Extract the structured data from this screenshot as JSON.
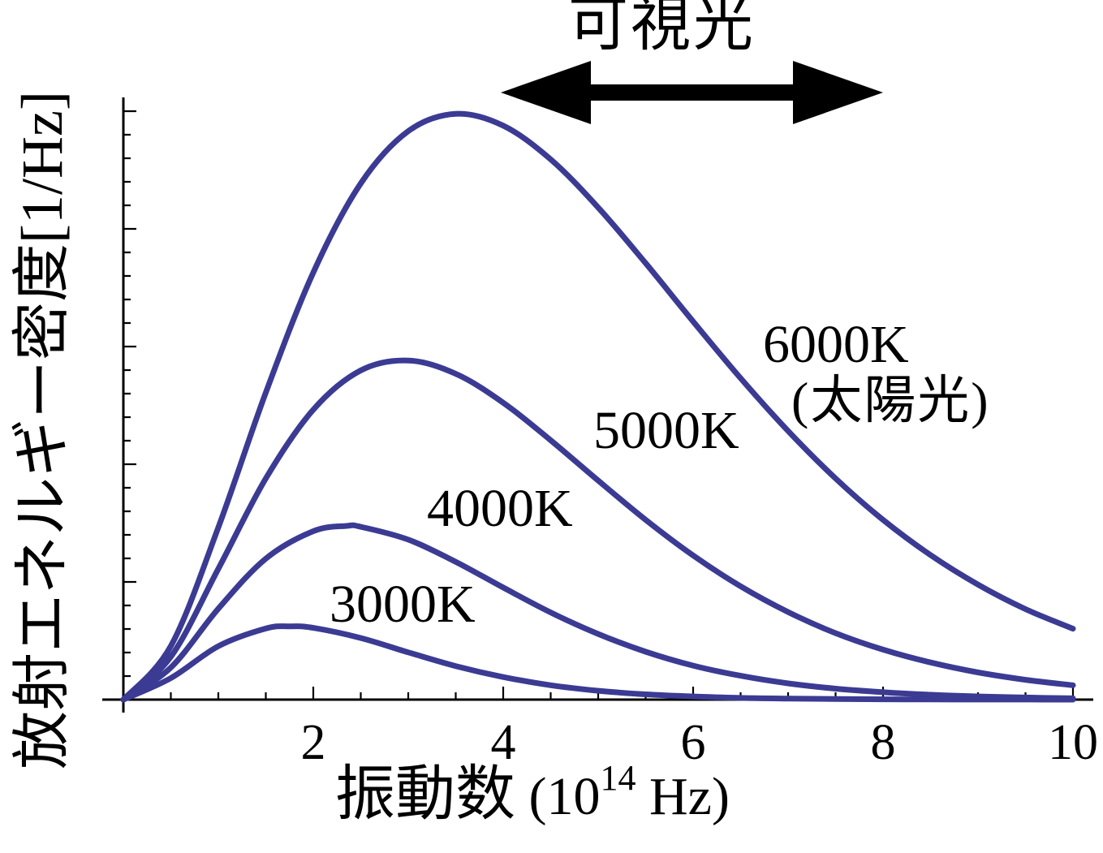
{
  "page": {
    "background_color": "#ffffff"
  },
  "chart_data": {
    "type": "line",
    "title": "",
    "annotation_visible_light": "可視光",
    "xlabel": {
      "main": "振動数",
      "unit_prefix": " (10",
      "exponent": "14",
      "unit_suffix": " Hz)"
    },
    "ylabel": "放射エネルギー密度[1/Hz]",
    "x_unit": "10^14 Hz",
    "x_ticks": [
      2,
      4,
      6,
      8,
      10
    ],
    "xlim": [
      0,
      10
    ],
    "ylim_relative": [
      0,
      2.9
    ],
    "grid": false,
    "legend_position": "inline-labels-on-curves",
    "line_color": "#3b3b94",
    "axis_color": "#000000",
    "arrow_color": "#000000",
    "series": [
      {
        "name": "6000K",
        "sublabel": "(太陽光)",
        "temperature_K": 6000,
        "points": [
          [
            0,
            0
          ],
          [
            0.5,
            0.254
          ],
          [
            1,
            0.816
          ],
          [
            1.5,
            1.455
          ],
          [
            2,
            2.024
          ],
          [
            2.5,
            2.446
          ],
          [
            3,
            2.694
          ],
          [
            3.5,
            2.776
          ],
          [
            4,
            2.72
          ],
          [
            4.5,
            2.56
          ],
          [
            5,
            2.332
          ],
          [
            5.5,
            2.068
          ],
          [
            6,
            1.792
          ],
          [
            6.5,
            1.523
          ],
          [
            7,
            1.273
          ],
          [
            7.5,
            1.048
          ],
          [
            8,
            0.852
          ],
          [
            8.5,
            0.685
          ],
          [
            9,
            0.545
          ],
          [
            9.5,
            0.429
          ],
          [
            10,
            0.336
          ]
        ]
      },
      {
        "name": "5000K",
        "sublabel": "",
        "temperature_K": 5000,
        "points": [
          [
            0,
            0
          ],
          [
            0.5,
            0.203
          ],
          [
            1,
            0.62
          ],
          [
            1.5,
            1.048
          ],
          [
            2,
            1.374
          ],
          [
            2.5,
            1.56
          ],
          [
            3,
            1.607
          ],
          [
            3.5,
            1.544
          ],
          [
            4,
            1.407
          ],
          [
            4.5,
            1.229
          ],
          [
            5,
            1.038
          ],
          [
            5.5,
            0.852
          ],
          [
            6,
            0.683
          ],
          [
            6.5,
            0.537
          ],
          [
            7,
            0.415
          ],
          [
            7.5,
            0.315
          ],
          [
            8,
            0.237
          ],
          [
            8.5,
            0.176
          ],
          [
            9,
            0.129
          ],
          [
            9.5,
            0.094
          ],
          [
            10,
            0.068
          ]
        ]
      },
      {
        "name": "4000K",
        "sublabel": "",
        "temperature_K": 4000,
        "points": [
          [
            0,
            0
          ],
          [
            0.5,
            0.152
          ],
          [
            1,
            0.431
          ],
          [
            1.5,
            0.668
          ],
          [
            2,
            0.798
          ],
          [
            2.35,
            0.823
          ],
          [
            2.5,
            0.819
          ],
          [
            3,
            0.758
          ],
          [
            3.5,
            0.653
          ],
          [
            4,
            0.531
          ],
          [
            4.5,
            0.413
          ],
          [
            5,
            0.311
          ],
          [
            5.5,
            0.227
          ],
          [
            6,
            0.161
          ],
          [
            6.5,
            0.113
          ],
          [
            7,
            0.077
          ],
          [
            7.5,
            0.052
          ],
          [
            8,
            0.035
          ],
          [
            8.5,
            0.023
          ],
          [
            9,
            0.015
          ],
          [
            9.5,
            0.01
          ],
          [
            10,
            0.006
          ]
        ]
      },
      {
        "name": "3000K",
        "sublabel": "",
        "temperature_K": 3000,
        "points": [
          [
            0,
            0
          ],
          [
            0.5,
            0.102
          ],
          [
            1,
            0.253
          ],
          [
            1.5,
            0.337
          ],
          [
            1.75,
            0.347
          ],
          [
            2,
            0.34
          ],
          [
            2.5,
            0.292
          ],
          [
            3,
            0.224
          ],
          [
            3.5,
            0.159
          ],
          [
            4,
            0.107
          ],
          [
            4.5,
            0.068
          ],
          [
            5,
            0.042
          ],
          [
            5.5,
            0.025
          ],
          [
            6,
            0.015
          ],
          [
            6.5,
            0.008
          ],
          [
            7,
            0.005
          ],
          [
            7.5,
            0.003
          ],
          [
            8,
            0.0014
          ],
          [
            8.5,
            0.0008
          ],
          [
            9,
            0.0004
          ],
          [
            9.5,
            0.0002
          ],
          [
            10,
            0.0001
          ]
        ]
      }
    ]
  }
}
